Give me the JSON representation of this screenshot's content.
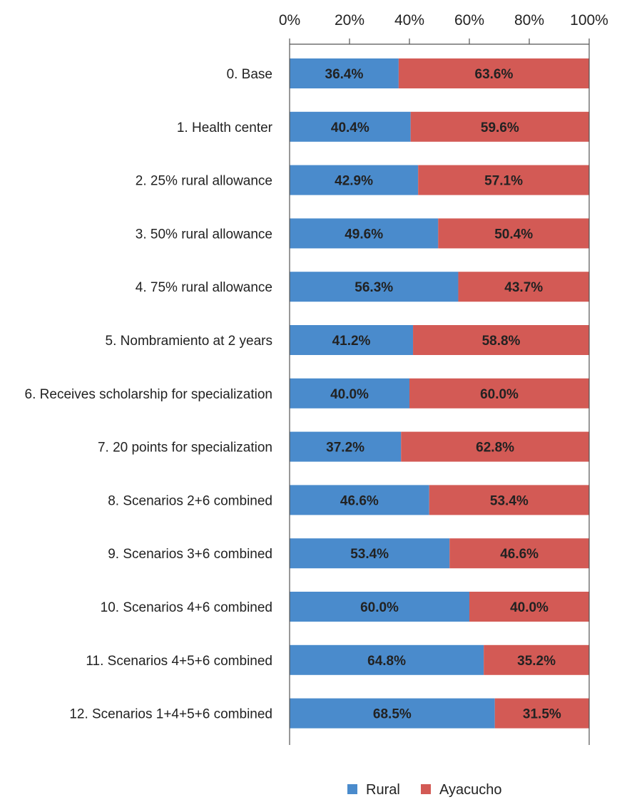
{
  "chart_data": {
    "type": "bar",
    "orientation": "horizontal",
    "stacked": "percent",
    "title": "",
    "xlabel": "",
    "ylabel": "",
    "xlim": [
      0,
      100
    ],
    "x_ticks": [
      "0%",
      "20%",
      "40%",
      "60%",
      "80%",
      "100%"
    ],
    "x_tick_values": [
      0,
      20,
      40,
      60,
      80,
      100
    ],
    "x_axis_position": "top",
    "grid": false,
    "legend_position": "bottom-center",
    "categories": [
      "0. Base",
      "1. Health center",
      "2. 25% rural allowance",
      "3. 50% rural allowance",
      "4. 75% rural allowance",
      "5. Nombramiento at 2 years",
      "6. Receives scholarship for specialization",
      "7. 20 points for specialization",
      "8. Scenarios 2+6 combined",
      "9. Scenarios 3+6 combined",
      "10. Scenarios 4+6 combined",
      "11. Scenarios 4+5+6 combined",
      "12. Scenarios 1+4+5+6 combined"
    ],
    "series": [
      {
        "name": "Rural",
        "color": "#4a8bcc",
        "values": [
          36.4,
          40.4,
          42.9,
          49.6,
          56.3,
          41.2,
          40.0,
          37.2,
          46.6,
          53.4,
          60.0,
          64.8,
          68.5
        ],
        "labels": [
          "36.4%",
          "40.4%",
          "42.9%",
          "49.6%",
          "56.3%",
          "41.2%",
          "40.0%",
          "37.2%",
          "46.6%",
          "53.4%",
          "60.0%",
          "64.8%",
          "68.5%"
        ]
      },
      {
        "name": "Ayacucho",
        "color": "#d35a55",
        "values": [
          63.6,
          59.6,
          57.1,
          50.4,
          43.7,
          58.8,
          60.0,
          62.8,
          53.4,
          46.6,
          40.0,
          35.2,
          31.5
        ],
        "labels": [
          "63.6%",
          "59.6%",
          "57.1%",
          "50.4%",
          "43.7%",
          "58.8%",
          "60.0%",
          "62.8%",
          "53.4%",
          "46.6%",
          "40.0%",
          "35.2%",
          "31.5%"
        ]
      }
    ]
  }
}
